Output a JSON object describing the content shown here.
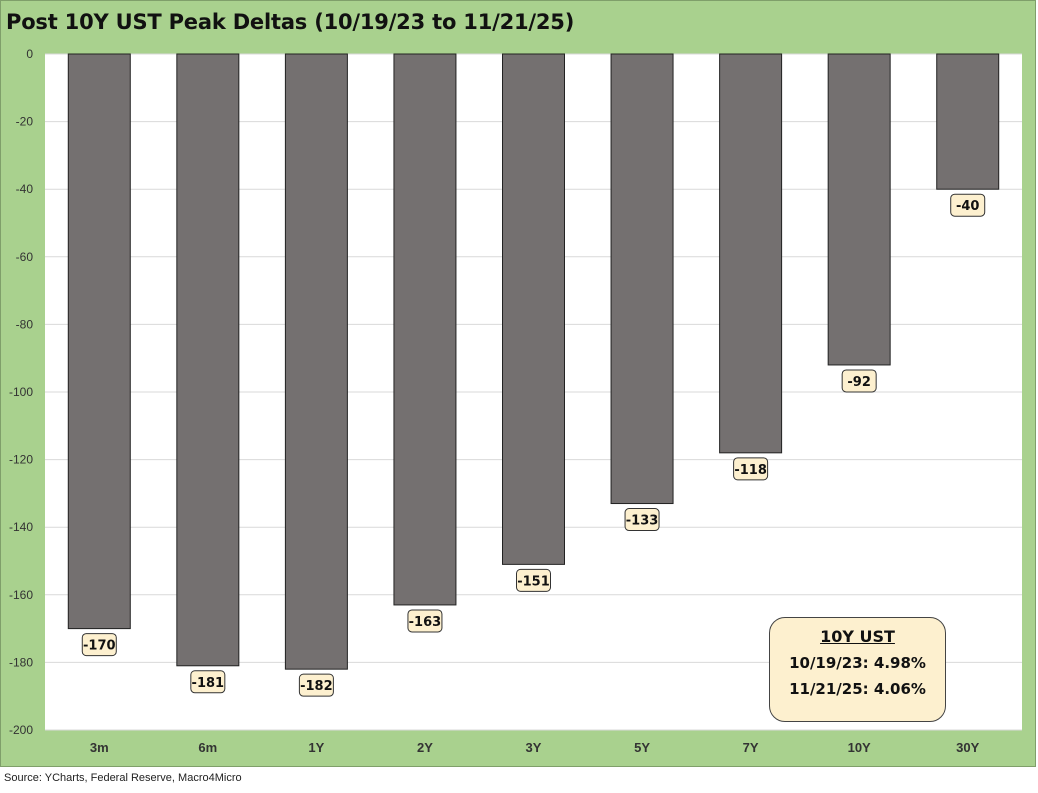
{
  "title": "Post 10Y UST Peak Deltas (10/19/23 to 11/21/25)",
  "source": "Source: YCharts, Federal Reserve, Macro4Micro",
  "colors": {
    "frame": "#a9d18e",
    "bar": "#747070",
    "label_bg": "#fdf0cf",
    "grid": "#d9d9d9"
  },
  "info_box": {
    "title": "10Y UST",
    "rows": [
      "10/19/23:  4.98%",
      "11/21/25:  4.06%"
    ]
  },
  "chart_data": {
    "type": "bar",
    "categories": [
      "3m",
      "6m",
      "1Y",
      "2Y",
      "3Y",
      "5Y",
      "7Y",
      "10Y",
      "30Y"
    ],
    "values": [
      -170,
      -181,
      -182,
      -163,
      -151,
      -133,
      -118,
      -92,
      -40
    ],
    "ylim": [
      -200,
      0
    ],
    "yticks": [
      0,
      -20,
      -40,
      -60,
      -80,
      -100,
      -120,
      -140,
      -160,
      -180,
      -200
    ],
    "grid": true,
    "data_labels": true
  }
}
